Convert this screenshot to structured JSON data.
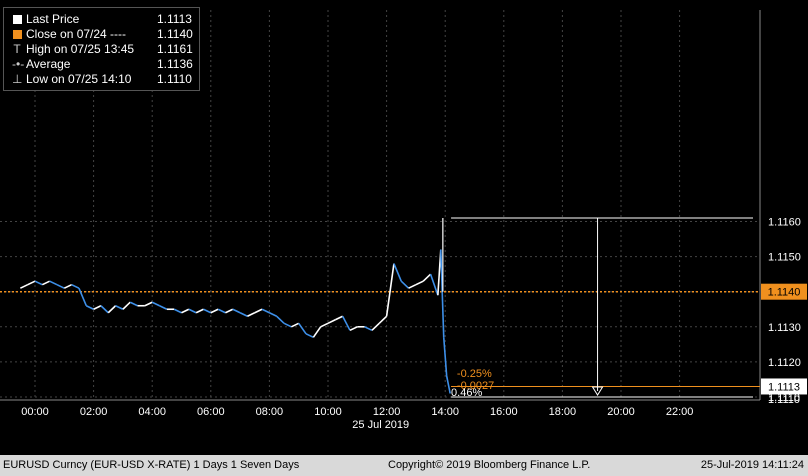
{
  "legend": [
    {
      "label": "Last Price",
      "value": "1.1113",
      "symbol": "square",
      "color": "#ffffff"
    },
    {
      "label": "Close on 07/24 ----",
      "value": "1.1140",
      "symbol": "square",
      "color": "#f0901e"
    },
    {
      "label": "High on 07/25 13:45",
      "value": "1.1161",
      "symbol": "T",
      "color": "#cccccc"
    },
    {
      "label": "Average",
      "value": "1.1136",
      "symbol": "dot-line",
      "color": "#cccccc"
    },
    {
      "label": "Low on 07/25 14:10",
      "value": "1.1110",
      "symbol": "perp",
      "color": "#cccccc"
    }
  ],
  "footer": {
    "left": "EURUSD Curncy (EUR-USD X-RATE) 1 Days 1 Seven Days",
    "center": "Copyright© 2019 Bloomberg Finance L.P.",
    "right": "25-Jul-2019 14:11:24"
  },
  "colors": {
    "background": "#000000",
    "grid": "#444444",
    "line_up": "#ffffff",
    "line_down": "#3d8fe8",
    "close_line": "#f0901e",
    "annotation": "#ffffff"
  },
  "chart_data": {
    "type": "line",
    "title": "",
    "xlabel": "",
    "ylabel": "",
    "date_label": "25 Jul 2019",
    "x_ticks": [
      "00:00",
      "02:00",
      "04:00",
      "06:00",
      "08:00",
      "10:00",
      "12:00",
      "14:00",
      "16:00",
      "18:00",
      "20:00",
      "22:00"
    ],
    "y_ticks": [
      "1.1110",
      "1.1120",
      "1.1130",
      "1.1140",
      "1.1150",
      "1.1160"
    ],
    "xlim_hours": [
      -0.5,
      24.0
    ],
    "ylim": [
      1.1106,
      1.1168
    ],
    "grid": true,
    "legend_position": "top-left",
    "close_reference": {
      "label": "1.1140",
      "value": 1.114
    },
    "last_price": {
      "label": "1.1113",
      "value": 1.1113
    },
    "low": {
      "label": "1.1110",
      "value": 1.111
    },
    "high": {
      "value": 1.1161
    },
    "change_annotations": [
      "-0.25%",
      "-0.0027",
      "0.46%"
    ],
    "series": [
      {
        "x": [
          -0.5,
          -0.25,
          0.0,
          0.25,
          0.5,
          0.75,
          1.0,
          1.25,
          1.5,
          1.75,
          2.0,
          2.25,
          2.5,
          2.75,
          3.0,
          3.25,
          3.5,
          3.75,
          4.0,
          4.25,
          4.5,
          4.75,
          5.0,
          5.25,
          5.5,
          5.75,
          6.0,
          6.25,
          6.5,
          6.75,
          7.0,
          7.25,
          7.5,
          7.75,
          8.0,
          8.25,
          8.5,
          8.75,
          9.0,
          9.25,
          9.5,
          9.75,
          10.0,
          10.25,
          10.5,
          10.75,
          11.0,
          11.25,
          11.5,
          11.75,
          12.0,
          12.25,
          12.5,
          12.75,
          13.0,
          13.25,
          13.5,
          13.75,
          13.85,
          13.95,
          14.05,
          14.17
        ],
        "y": [
          1.1141,
          1.1142,
          1.1143,
          1.1142,
          1.1143,
          1.1142,
          1.1141,
          1.1142,
          1.1141,
          1.1136,
          1.1135,
          1.1136,
          1.1134,
          1.1136,
          1.1135,
          1.1137,
          1.1136,
          1.1136,
          1.1137,
          1.1136,
          1.1135,
          1.1135,
          1.1134,
          1.1135,
          1.1134,
          1.1135,
          1.1134,
          1.1135,
          1.1134,
          1.1135,
          1.1134,
          1.1133,
          1.1134,
          1.1135,
          1.1134,
          1.1133,
          1.1131,
          1.113,
          1.1131,
          1.1128,
          1.1127,
          1.113,
          1.1131,
          1.1132,
          1.1133,
          1.1129,
          1.113,
          1.113,
          1.1129,
          1.1131,
          1.1133,
          1.1148,
          1.1143,
          1.1141,
          1.1142,
          1.1143,
          1.1145,
          1.1139,
          1.1152,
          1.1127,
          1.1116,
          1.1111
        ]
      }
    ]
  }
}
